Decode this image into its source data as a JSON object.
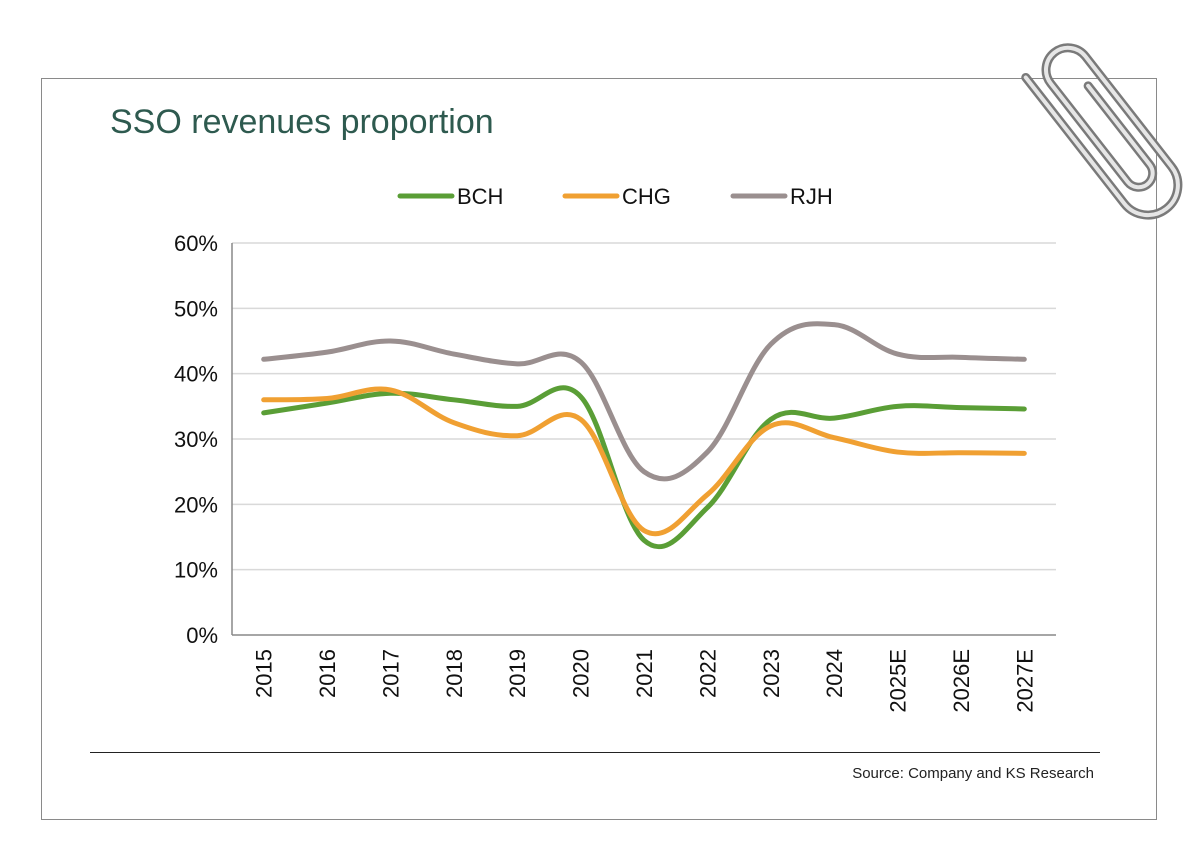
{
  "header": {
    "title": "SSO revenues proportion"
  },
  "footer": {
    "source": "Source: Company and KS Research"
  },
  "colors": {
    "BCH": "#5a9e36",
    "CHG": "#f0a032",
    "RJH": "#9a8f8f",
    "grid": "#d9d9d9",
    "title": "#2e5a4f"
  },
  "icons": {
    "paperclip": "paperclip-icon"
  },
  "chart_data": {
    "type": "line",
    "title": "SSO revenues proportion",
    "xlabel": "",
    "ylabel": "",
    "categories": [
      "2015",
      "2016",
      "2017",
      "2018",
      "2019",
      "2020",
      "2021",
      "2022",
      "2023",
      "2024",
      "2025E",
      "2026E",
      "2027E"
    ],
    "ylim": [
      0,
      60
    ],
    "yticks": [
      0,
      10,
      20,
      30,
      40,
      50,
      60
    ],
    "ytick_labels": [
      "0%",
      "10%",
      "20%",
      "30%",
      "40%",
      "50%",
      "60%"
    ],
    "grid": true,
    "legend_position": "top",
    "series": [
      {
        "name": "BCH",
        "values": [
          34,
          35.5,
          37,
          36,
          35,
          36.5,
          14.5,
          19.5,
          33,
          33.2,
          35,
          34.8,
          34.6
        ]
      },
      {
        "name": "CHG",
        "values": [
          36,
          36.2,
          37.5,
          32.5,
          30.5,
          33,
          16,
          21.5,
          32,
          30.2,
          28,
          27.9,
          27.8
        ]
      },
      {
        "name": "RJH",
        "values": [
          42.2,
          43.3,
          45,
          43,
          41.5,
          41.8,
          25,
          28,
          44.5,
          47.5,
          43,
          42.5,
          42.2
        ]
      }
    ]
  }
}
